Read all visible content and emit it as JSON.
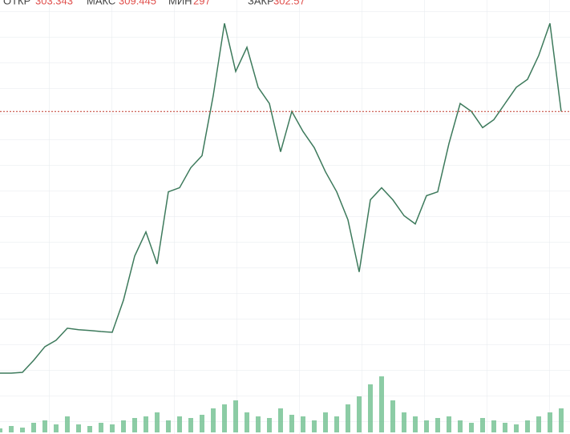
{
  "chart_data": {
    "type": "line",
    "header": {
      "open_label": "ОТКР",
      "open": 303.343,
      "high_label": "МАКС",
      "high": 309.445,
      "low_label": "МИН",
      "low": 297.0,
      "close_label": "ЗАКР",
      "close": 302.57
    },
    "series": [
      {
        "name": "price",
        "color": "#3d7a5c",
        "values": [
          200.7,
          200.7,
          201.0,
          205.7,
          211.0,
          213.5,
          218.2,
          217.6,
          217.3,
          216.9,
          216.6,
          229.1,
          246.3,
          255.7,
          243.2,
          271.3,
          272.9,
          280.7,
          285.4,
          308.8,
          336.9,
          318.2,
          327.6,
          312.0,
          305.7,
          286.9,
          302.6,
          294.8,
          288.5,
          279.1,
          271.3,
          260.4,
          240.1,
          268.2,
          272.9,
          268.2,
          262.0,
          258.8,
          269.8,
          271.3,
          290.1,
          305.7,
          302.6,
          296.3,
          299.4,
          305.7,
          312.0,
          315.1,
          324.4,
          336.9,
          302.6
        ]
      },
      {
        "name": "volume",
        "color": "#6fbf8f",
        "axis": "y2",
        "values": [
          5,
          8,
          6,
          12,
          15,
          10,
          20,
          10,
          8,
          12,
          10,
          15,
          18,
          20,
          25,
          15,
          20,
          18,
          22,
          30,
          35,
          40,
          25,
          20,
          18,
          30,
          22,
          20,
          15,
          25,
          20,
          35,
          45,
          60,
          70,
          40,
          25,
          20,
          15,
          18,
          20,
          15,
          12,
          18,
          15,
          12,
          10,
          15,
          20,
          25,
          30
        ]
      }
    ],
    "ylim": [
      177,
      346
    ],
    "y2lim": [
      0,
      100
    ],
    "close_line_color": "#c0392b"
  }
}
